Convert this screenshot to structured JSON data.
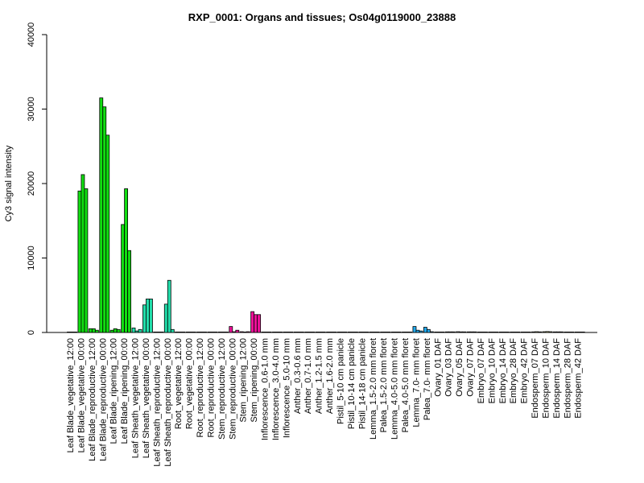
{
  "chart_data": {
    "type": "bar",
    "title": "RXP_0001: Organs and tissues; Os04g0119000_23888",
    "ylabel": "Cy3 signal intensity",
    "xlabel": "",
    "ylim": [
      0,
      40000
    ],
    "yticks": [
      0,
      10000,
      20000,
      30000,
      40000
    ],
    "categories": [
      "Leaf Blade_vegetative_12:00",
      "Leaf Blade_vegetative_00:00",
      "Leaf Blade_reproductive_12:00",
      "Leaf Blade_reproductive_00:00",
      "Leaf Blade_ripening_12:00",
      "Leaf Blade_ripening_00:00",
      "Leaf Sheath_vegetative_12:00",
      "Leaf Sheath_vegetative_00:00",
      "Leaf Sheath_reproductive_12:00",
      "Leaf Sheath_reproductive_00:00",
      "Root_vegetative_12:00",
      "Root_vegetative_00:00",
      "Root_reproductive_12:00",
      "Root_reproductive_00:00",
      "Stem_reproductive_12:00",
      "Stem_reproductive_00:00",
      "Stem_ripening_12:00",
      "Stem_ripening_00:00",
      "Inflorescence_0.6-1.0 mm",
      "Inflorescence_3.0-4.0 mm",
      "Inflorescence_5.0-10 mm",
      "Anther_0.3-0.6 mm",
      "Anther_0.7-1.0 mm",
      "Anther_1.2-1.5 mm",
      "Anther_1.6-2.0 mm",
      "Pistil_5-10 cm panicle",
      "Pistil_10-14 cm panicle",
      "Pistil_14-18 cm panicle",
      "Lemma_1.5-2.0 mm floret",
      "Palea_1.5-2.0 mm floret",
      "Lemma_4.0-5.0 mm floret",
      "Palea_4.0-5.0 mm floret",
      "Lemma_7.0- mm floret",
      "Palea_7.0- mm floret",
      "Ovary_01 DAF",
      "Ovary_03 DAF",
      "Ovary_05 DAF",
      "Ovary_07 DAF",
      "Embryo_07 DAF",
      "Embryo_10 DAF",
      "Embryo_14 DAF",
      "Embryo_28 DAF",
      "Embryo_42 DAF",
      "Endosperm_07 DAF",
      "Endosperm_10 DAF",
      "Endosperm_14 DAF",
      "Endosperm_28 DAF",
      "Endosperm_42 DAF"
    ],
    "groups": [
      {
        "values": [
          50,
          50,
          50
        ],
        "color": "#00cc00"
      },
      {
        "values": [
          19000,
          21200,
          19300
        ],
        "color": "#11dd11"
      },
      {
        "values": [
          500,
          500,
          300
        ],
        "color": "#11dd11"
      },
      {
        "values": [
          31500,
          30300,
          26500
        ],
        "color": "#11dd11"
      },
      {
        "values": [
          300,
          500,
          400
        ],
        "color": "#11dd11"
      },
      {
        "values": [
          14500,
          19300,
          11000
        ],
        "color": "#11dd11"
      },
      {
        "values": [
          600,
          200,
          400
        ],
        "color": "#22ddaa"
      },
      {
        "values": [
          3700,
          4500,
          4500
        ],
        "color": "#22ddaa"
      },
      {
        "values": [
          50,
          50,
          50
        ],
        "color": "#22ddaa"
      },
      {
        "values": [
          3800,
          7000,
          400
        ],
        "color": "#22ddaa"
      },
      {
        "values": [
          30,
          30,
          30
        ],
        "color": "#bbbbbb"
      },
      {
        "values": [
          30,
          30,
          30
        ],
        "color": "#bbbbbb"
      },
      {
        "values": [
          30,
          30,
          30
        ],
        "color": "#bbbbbb"
      },
      {
        "values": [
          30,
          30,
          30
        ],
        "color": "#bbbbbb"
      },
      {
        "values": [
          30,
          30,
          30
        ],
        "color": "#ee1199"
      },
      {
        "values": [
          800,
          100,
          300
        ],
        "color": "#ee1199"
      },
      {
        "values": [
          100,
          50,
          100
        ],
        "color": "#ee1199"
      },
      {
        "values": [
          2800,
          2400,
          2400
        ],
        "color": "#ee1199"
      },
      {
        "values": [
          30,
          30,
          30
        ],
        "color": "#dddddd"
      },
      {
        "values": [
          30,
          30,
          30
        ],
        "color": "#dddddd"
      },
      {
        "values": [
          30,
          30,
          30
        ],
        "color": "#dddddd"
      },
      {
        "values": [
          30,
          30,
          30
        ],
        "color": "#dddddd"
      },
      {
        "values": [
          30,
          30,
          30
        ],
        "color": "#dddddd"
      },
      {
        "values": [
          30,
          30,
          30
        ],
        "color": "#dddddd"
      },
      {
        "values": [
          30,
          30,
          30
        ],
        "color": "#dddddd"
      },
      {
        "values": [
          30,
          30,
          30
        ],
        "color": "#dddddd"
      },
      {
        "values": [
          30,
          30,
          30
        ],
        "color": "#dddddd"
      },
      {
        "values": [
          30,
          30,
          30
        ],
        "color": "#dddddd"
      },
      {
        "values": [
          30,
          30,
          30
        ],
        "color": "#22aaee"
      },
      {
        "values": [
          30,
          30,
          30
        ],
        "color": "#22aaee"
      },
      {
        "values": [
          30,
          30,
          30
        ],
        "color": "#22aaee"
      },
      {
        "values": [
          30,
          30,
          30
        ],
        "color": "#22aaee"
      },
      {
        "values": [
          800,
          300,
          200
        ],
        "color": "#22aaee"
      },
      {
        "values": [
          700,
          400,
          100
        ],
        "color": "#22aaee"
      },
      {
        "values": [
          50,
          50,
          50
        ],
        "color": "#cccccc"
      },
      {
        "values": [
          80,
          80,
          80
        ],
        "color": "#cccccc"
      },
      {
        "values": [
          100,
          80,
          80
        ],
        "color": "#cccccc"
      },
      {
        "values": [
          80,
          80,
          80
        ],
        "color": "#cccccc"
      },
      {
        "values": [
          50,
          50,
          50
        ],
        "color": "#cccccc"
      },
      {
        "values": [
          50,
          50,
          50
        ],
        "color": "#cccccc"
      },
      {
        "values": [
          50,
          50,
          50
        ],
        "color": "#cccccc"
      },
      {
        "values": [
          50,
          50,
          50
        ],
        "color": "#cccccc"
      },
      {
        "values": [
          50,
          50,
          50
        ],
        "color": "#cccccc"
      },
      {
        "values": [
          80,
          100,
          80
        ],
        "color": "#cccc66"
      },
      {
        "values": [
          100,
          120,
          100
        ],
        "color": "#cccc66"
      },
      {
        "values": [
          80,
          80,
          80
        ],
        "color": "#cccc66"
      },
      {
        "values": [
          50,
          50,
          50
        ],
        "color": "#cccc66"
      },
      {
        "values": [
          50,
          50,
          50
        ],
        "color": "#cccc66"
      }
    ]
  }
}
